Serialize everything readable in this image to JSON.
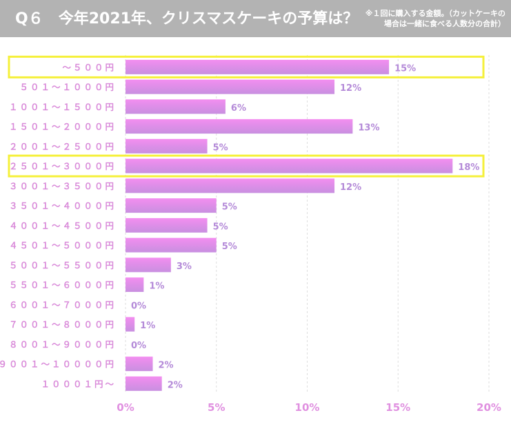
{
  "header": {
    "title": "Q６　今年2021年、クリスマスケーキの予算は？",
    "note_line1": "※１回に購入する金額。（カットケーキの",
    "note_line2": "場合は一緒に食べる人数分の合計）"
  },
  "colors": {
    "bar_top": "#f38ef0",
    "bar_bottom": "#c88fe0",
    "highlight": "#f5f03a",
    "header_bg": "#b3b3b3"
  },
  "chart_data": {
    "type": "bar",
    "orientation": "horizontal",
    "title": "今年2021年、クリスマスケーキの予算は？",
    "xlabel": "",
    "ylabel": "",
    "xlim": [
      0,
      20
    ],
    "grid": true,
    "categories": [
      "～５００円",
      "５０１～１０００円",
      "１００１～１５００円",
      "１５０１～２０００円",
      "２００１～２５００円",
      "２５０１～３０００円",
      "３００１～３５００円",
      "３５０１～４０００円",
      "４００１～４５００円",
      "４５０１～５０００円",
      "５００１～５５００円",
      "５５０１～６０００円",
      "６００１～７０００円",
      "７００１～８０００円",
      "８００１～９０００円",
      "９００１～１００００円",
      "１０００１円～"
    ],
    "values": [
      14.5,
      11.5,
      5.5,
      12.5,
      4.5,
      18.0,
      11.5,
      5.0,
      4.5,
      5.0,
      2.5,
      1.0,
      0,
      0.5,
      0,
      1.5,
      2.0
    ],
    "labels": [
      "15%",
      "12%",
      "6%",
      "13%",
      "5%",
      "18%",
      "12%",
      "5%",
      "5%",
      "5%",
      "3%",
      "1%",
      "0%",
      "1%",
      "0%",
      "2%",
      "2%"
    ],
    "x_ticks": [
      "0%",
      "5%",
      "10%",
      "15%",
      "20%"
    ],
    "x_tick_values": [
      0,
      5,
      10,
      15,
      20
    ],
    "highlighted": [
      "～５００円",
      "２５０１～３０００円"
    ]
  }
}
